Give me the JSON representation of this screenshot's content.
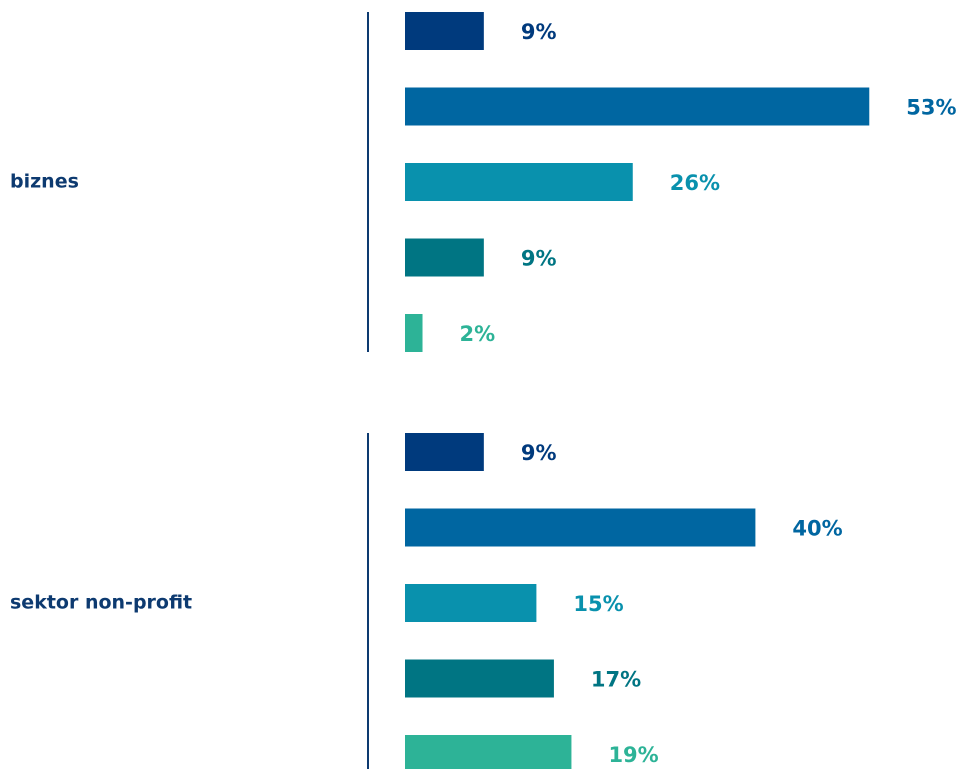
{
  "chart_data": {
    "type": "bar",
    "orientation": "horizontal",
    "categories": [
      "biznes",
      "sektor non-profit"
    ],
    "series": [
      {
        "color": "#003a7d",
        "values": [
          9,
          9
        ],
        "value_labels": [
          "9%",
          "9%"
        ]
      },
      {
        "color": "#0066a1",
        "values": [
          53,
          40
        ],
        "value_labels": [
          "53%",
          "40%"
        ]
      },
      {
        "color": "#0991ad",
        "values": [
          26,
          15
        ],
        "value_labels": [
          "26%",
          "15%"
        ]
      },
      {
        "color": "#007583",
        "values": [
          9,
          17
        ],
        "value_labels": [
          "9%",
          "17%"
        ]
      },
      {
        "color": "#2db397",
        "values": [
          2,
          19
        ],
        "value_labels": [
          "2%",
          "19%"
        ]
      }
    ]
  }
}
